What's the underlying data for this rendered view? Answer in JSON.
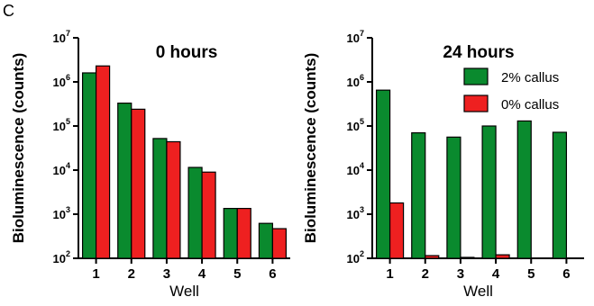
{
  "panel_letter": "C",
  "colors": {
    "series_1": "#0a8a2e",
    "series_2": "#ee2020",
    "axis": "#000000"
  },
  "chart_data": [
    {
      "type": "bar",
      "title": "0 hours",
      "xlabel": "Well",
      "ylabel": "Bioluminescence (counts)",
      "yscale": "log",
      "ylim": [
        100,
        10000000
      ],
      "y_ticks": [
        {
          "base": "10",
          "exp": "2"
        },
        {
          "base": "10",
          "exp": "3"
        },
        {
          "base": "10",
          "exp": "4"
        },
        {
          "base": "10",
          "exp": "5"
        },
        {
          "base": "10",
          "exp": "6"
        },
        {
          "base": "10",
          "exp": "7"
        }
      ],
      "categories": [
        "1",
        "2",
        "3",
        "4",
        "5",
        "6"
      ],
      "legend": null,
      "series": [
        {
          "values": [
            1600000,
            330000,
            52000,
            11500,
            1350,
            620
          ]
        },
        {
          "values": [
            2300000,
            240000,
            44000,
            9000,
            1350,
            470
          ]
        }
      ]
    },
    {
      "type": "bar",
      "title": "24 hours",
      "xlabel": "Well",
      "ylabel": "Bioluminescence (counts)",
      "yscale": "log",
      "ylim": [
        100,
        10000000
      ],
      "y_ticks": [
        {
          "base": "10",
          "exp": "2"
        },
        {
          "base": "10",
          "exp": "3"
        },
        {
          "base": "10",
          "exp": "4"
        },
        {
          "base": "10",
          "exp": "5"
        },
        {
          "base": "10",
          "exp": "6"
        },
        {
          "base": "10",
          "exp": "7"
        }
      ],
      "categories": [
        "1",
        "2",
        "3",
        "4",
        "5",
        "6"
      ],
      "legend": "top-right",
      "series": [
        {
          "name": "2% callus",
          "values": [
            650000,
            70000,
            56000,
            100000,
            130000,
            72000
          ]
        },
        {
          "name": "0% callus",
          "values": [
            1800,
            115,
            105,
            120,
            100,
            100
          ]
        }
      ]
    }
  ]
}
